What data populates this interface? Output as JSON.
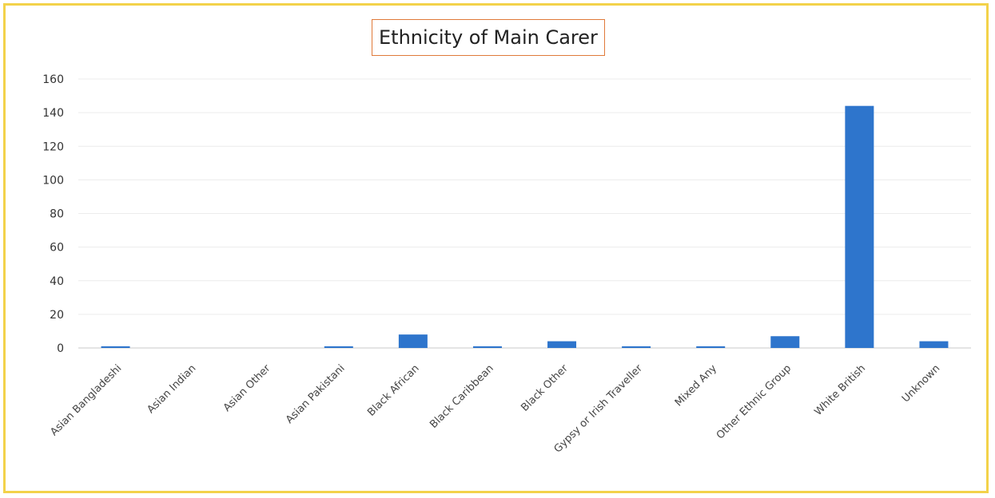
{
  "chart_data": {
    "type": "bar",
    "title": "Ethnicity of Main Carer",
    "xlabel": "",
    "ylabel": "",
    "ylim": [
      0,
      160
    ],
    "yticks": [
      0,
      20,
      40,
      60,
      80,
      100,
      120,
      140,
      160
    ],
    "grid": true,
    "legend": "none",
    "bar_color": "#2e75cc",
    "categories": [
      "Asian Bangladeshi",
      "Asian Indian",
      "Asian Other",
      "Asian Pakistani",
      "Black African",
      "Black Caribbean",
      "Black Other",
      "Gypsy or Irish Traveller",
      "Mixed Any",
      "Other Ethnic Group",
      "White British",
      "Unknown"
    ],
    "values": [
      1,
      0,
      0,
      1,
      8,
      1,
      4,
      1,
      1,
      7,
      144,
      4
    ]
  }
}
